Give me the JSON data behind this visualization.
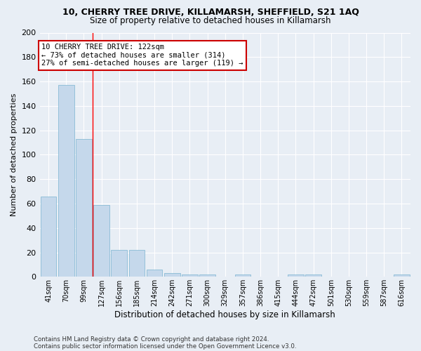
{
  "title1": "10, CHERRY TREE DRIVE, KILLAMARSH, SHEFFIELD, S21 1AQ",
  "title2": "Size of property relative to detached houses in Killamarsh",
  "xlabel": "Distribution of detached houses by size in Killamarsh",
  "ylabel": "Number of detached properties",
  "categories": [
    "41sqm",
    "70sqm",
    "99sqm",
    "127sqm",
    "156sqm",
    "185sqm",
    "214sqm",
    "242sqm",
    "271sqm",
    "300sqm",
    "329sqm",
    "357sqm",
    "386sqm",
    "415sqm",
    "444sqm",
    "472sqm",
    "501sqm",
    "530sqm",
    "559sqm",
    "587sqm",
    "616sqm"
  ],
  "values": [
    66,
    157,
    113,
    59,
    22,
    22,
    6,
    3,
    2,
    2,
    0,
    2,
    0,
    0,
    2,
    2,
    0,
    0,
    0,
    0,
    2
  ],
  "bar_color": "#c5d8eb",
  "bar_edge_color": "#7ab3d0",
  "background_color": "#e8eef5",
  "grid_color": "#ffffff",
  "red_line_x": 2.5,
  "annotation_line1": "10 CHERRY TREE DRIVE: 122sqm",
  "annotation_line2": "← 73% of detached houses are smaller (314)",
  "annotation_line3": "27% of semi-detached houses are larger (119) →",
  "annotation_box_color": "#ffffff",
  "annotation_box_edge_color": "#cc0000",
  "footer1": "Contains HM Land Registry data © Crown copyright and database right 2024.",
  "footer2": "Contains public sector information licensed under the Open Government Licence v3.0.",
  "ylim": [
    0,
    200
  ],
  "yticks": [
    0,
    20,
    40,
    60,
    80,
    100,
    120,
    140,
    160,
    180,
    200
  ]
}
